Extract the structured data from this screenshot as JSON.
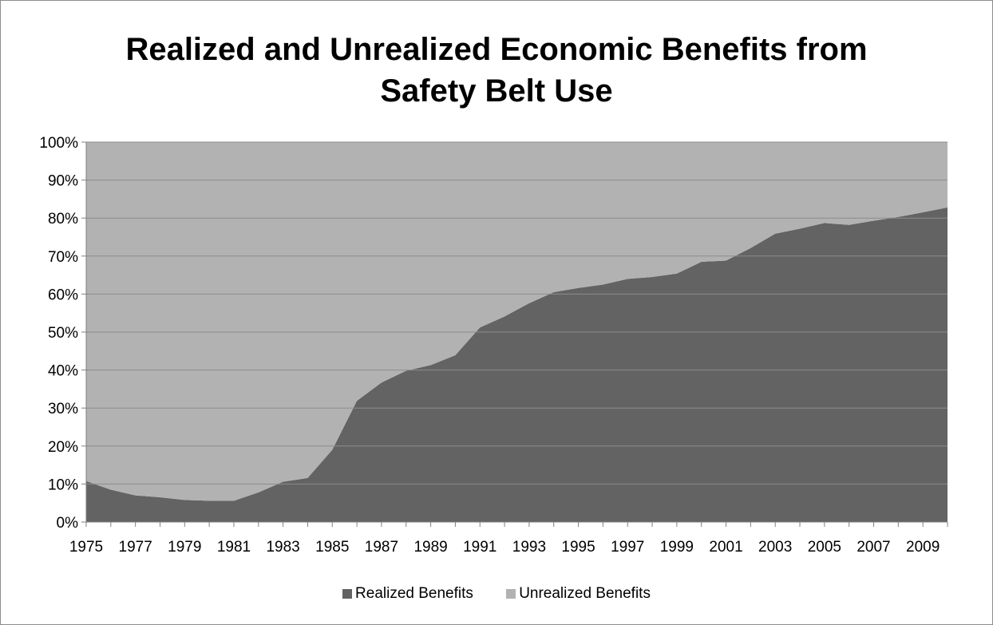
{
  "chart_data": {
    "type": "area",
    "stacked": "percent",
    "title": "Realized and Unrealized Economic Benefits from Safety Belt Use",
    "title_lines": [
      "Realized and Unrealized Economic Benefits from",
      "Safety Belt Use"
    ],
    "x": [
      1975,
      1976,
      1977,
      1978,
      1979,
      1980,
      1981,
      1982,
      1983,
      1984,
      1985,
      1986,
      1987,
      1988,
      1989,
      1990,
      1991,
      1992,
      1993,
      1994,
      1995,
      1996,
      1997,
      1998,
      1999,
      2000,
      2001,
      2002,
      2003,
      2004,
      2005,
      2006,
      2007,
      2008,
      2009,
      2010
    ],
    "x_tick_labels": [
      "1975",
      "1977",
      "1979",
      "1981",
      "1983",
      "1985",
      "1987",
      "1989",
      "1991",
      "1993",
      "1995",
      "1997",
      "1999",
      "2001",
      "2003",
      "2005",
      "2007",
      "2009"
    ],
    "y_tick_labels": [
      "0%",
      "10%",
      "20%",
      "30%",
      "40%",
      "50%",
      "60%",
      "70%",
      "80%",
      "90%",
      "100%"
    ],
    "ylim": [
      0,
      100
    ],
    "series": [
      {
        "name": "Realized Benefits",
        "color": "#636363",
        "values": [
          10.8,
          8.5,
          7.0,
          6.5,
          5.8,
          5.6,
          5.6,
          7.8,
          10.6,
          11.6,
          19.0,
          31.9,
          36.7,
          39.8,
          41.3,
          43.9,
          51.2,
          54.1,
          57.6,
          60.5,
          61.6,
          62.5,
          64.0,
          64.5,
          65.4,
          68.5,
          68.8,
          72.1,
          75.9,
          77.2,
          78.7,
          78.2,
          79.3,
          80.3,
          81.5,
          82.8
        ]
      },
      {
        "name": "Unrealized Benefits",
        "color": "#b2b2b2",
        "values": [
          89.2,
          91.5,
          93.0,
          93.5,
          94.2,
          94.4,
          94.4,
          92.2,
          89.4,
          88.4,
          81.0,
          68.1,
          63.3,
          60.2,
          58.7,
          56.1,
          48.8,
          45.9,
          42.4,
          39.5,
          38.4,
          37.5,
          36.0,
          35.5,
          34.6,
          31.5,
          31.2,
          27.9,
          24.1,
          22.8,
          21.3,
          21.8,
          20.7,
          19.7,
          18.5,
          17.2
        ]
      }
    ],
    "grid": true,
    "legend_position": "bottom"
  }
}
